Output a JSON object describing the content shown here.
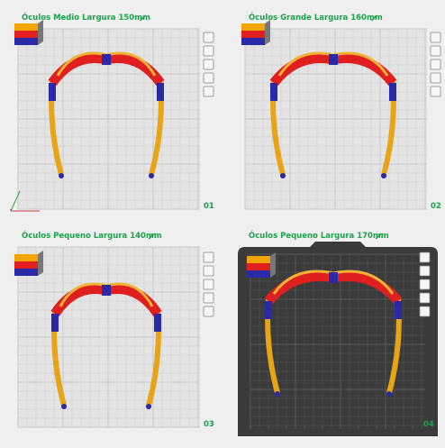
{
  "plates": [
    {
      "title": "Óculos Medio Largura 150mm",
      "number": "01"
    },
    {
      "title": "Óculos Grande Largura 160mm",
      "number": "02"
    },
    {
      "title": "Óculos Pequeno Largura 140mm",
      "number": "03"
    },
    {
      "title": "Óculos Pequeno Largura 170mm",
      "number": "04"
    }
  ]
}
